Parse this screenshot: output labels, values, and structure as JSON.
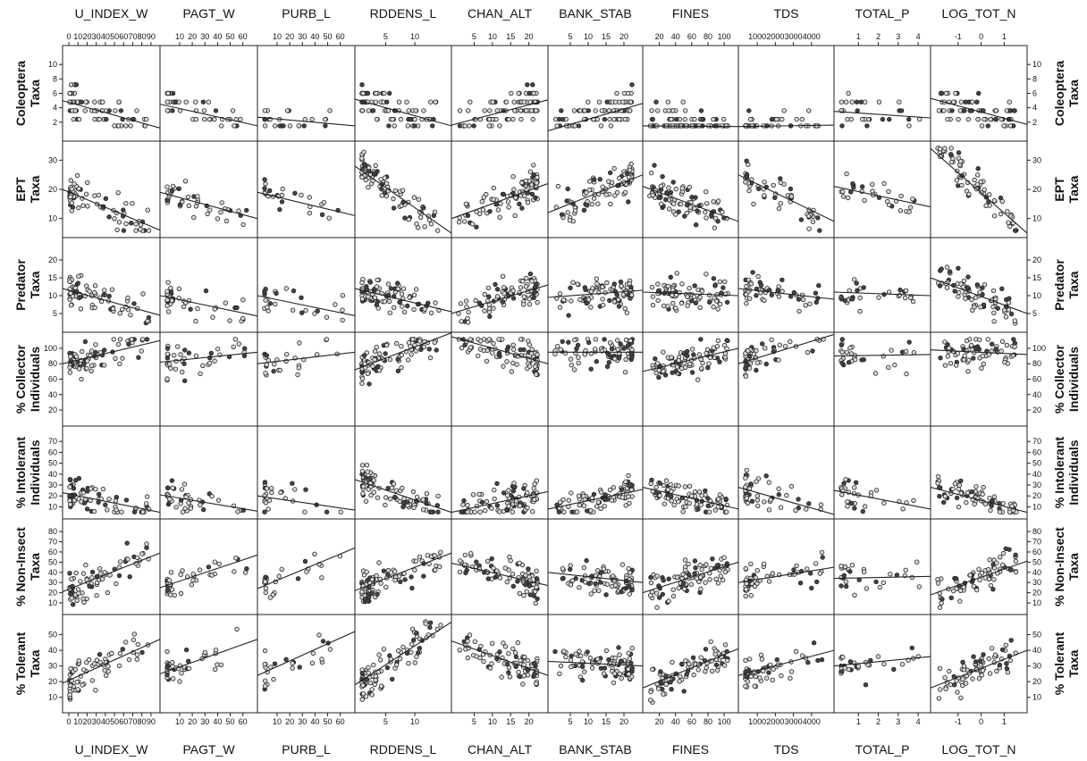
{
  "chart_data": {
    "type": "scatter",
    "title": "",
    "description_kind": "scatterplot matrix with per-panel linear fit lines",
    "grid": false,
    "columns": [
      {
        "name": "U_INDEX_W",
        "ticks": [
          0,
          10,
          20,
          30,
          40,
          50,
          60,
          70,
          80,
          90
        ],
        "tick_labels": [
          "0",
          "10",
          "20",
          "30",
          "40",
          "50",
          "60",
          "70",
          "80",
          "90"
        ],
        "range": [
          -2,
          95
        ],
        "top_label": "U_INDEX_W",
        "bottom_label": "U_INDEX_W"
      },
      {
        "name": "PAGT_W",
        "ticks": [
          10,
          20,
          30,
          40,
          50,
          60
        ],
        "tick_labels": [
          "10",
          "20",
          "30",
          "40",
          "50",
          "60"
        ],
        "range": [
          -2,
          68
        ],
        "top_label": "PAGT_W",
        "bottom_label": "PAGT_W"
      },
      {
        "name": "PURB_L",
        "ticks": [
          10,
          20,
          30,
          40,
          50,
          60
        ],
        "tick_labels": [
          "10",
          "20",
          "30",
          "40",
          "50",
          "60"
        ],
        "range": [
          -2,
          68
        ],
        "top_label": "PURB_L",
        "bottom_label": "PURB_L"
      },
      {
        "name": "RDDENS_L",
        "ticks": [
          5,
          10
        ],
        "tick_labels": [
          "5",
          "10"
        ],
        "range": [
          0.5,
          15.5
        ],
        "top_label": "RDDENS_L",
        "bottom_label": "RDDENS_L"
      },
      {
        "name": "CHAN_ALT",
        "ticks": [
          5,
          10,
          15,
          20
        ],
        "tick_labels": [
          "5",
          "10",
          "15",
          "20"
        ],
        "range": [
          0,
          24
        ],
        "top_label": "CHAN_ALT",
        "bottom_label": "CHAN_ALT"
      },
      {
        "name": "BANK_STAB",
        "ticks": [
          5,
          10,
          15,
          20
        ],
        "tick_labels": [
          "5",
          "10",
          "15",
          "20"
        ],
        "range": [
          0,
          24
        ],
        "top_label": "BANK_STAB",
        "bottom_label": "BANK_STAB"
      },
      {
        "name": "FINES",
        "ticks": [
          20,
          40,
          60,
          80,
          100
        ],
        "tick_labels": [
          "20",
          "40",
          "60",
          "80",
          "100"
        ],
        "range": [
          5,
          112
        ],
        "top_label": "FINES",
        "bottom_label": "FINES"
      },
      {
        "name": "TDS",
        "ticks": [
          1000,
          2000,
          3000,
          4000
        ],
        "tick_labels": [
          "1000",
          "2000",
          "3000",
          "4000"
        ],
        "range": [
          200,
          5000
        ],
        "top_label": "TDS",
        "bottom_label": "TDS"
      },
      {
        "name": "TOTAL_P",
        "ticks": [
          1,
          2,
          3,
          4
        ],
        "tick_labels": [
          "1",
          "2",
          "3",
          "4"
        ],
        "range": [
          0,
          4.4
        ],
        "top_label": "TOTAL_P",
        "bottom_label": "TOTAL_P"
      },
      {
        "name": "LOG_TOT_N",
        "ticks": [
          -1,
          0,
          1
        ],
        "tick_labels": [
          "-1",
          "0",
          "1"
        ],
        "range": [
          -2,
          1.8
        ],
        "top_label": "LOG_TOT_N",
        "bottom_label": "LOG_TOT_N"
      }
    ],
    "rows": [
      {
        "name": "Coleoptera Taxa",
        "label_lines": [
          "Coleoptera",
          "Taxa"
        ],
        "ticks": [
          2,
          4,
          6,
          8,
          10
        ],
        "tick_labels": [
          "2",
          "4",
          "6",
          "8",
          "10"
        ],
        "range": [
          0,
          12
        ]
      },
      {
        "name": "EPT Taxa",
        "label_lines": [
          "EPT",
          "Taxa"
        ],
        "ticks": [
          10,
          20,
          30
        ],
        "tick_labels": [
          "10",
          "20",
          "30"
        ],
        "range": [
          5,
          35
        ]
      },
      {
        "name": "Predator Taxa",
        "label_lines": [
          "Predator",
          "Taxa"
        ],
        "ticks": [
          5,
          10,
          15,
          20
        ],
        "tick_labels": [
          "5",
          "10",
          "15",
          "20"
        ],
        "range": [
          1,
          25
        ]
      },
      {
        "name": "% Collector Individuals",
        "label_lines": [
          "% Collector",
          "Individuals"
        ],
        "ticks": [
          20,
          40,
          60,
          80,
          100
        ],
        "tick_labels": [
          "20",
          "40",
          "60",
          "80",
          "100"
        ],
        "range": [
          5,
          115
        ]
      },
      {
        "name": "% Intolerant Individuals",
        "label_lines": [
          "% Intolerant",
          "Individuals"
        ],
        "ticks": [
          10,
          20,
          30,
          40,
          50,
          60,
          70
        ],
        "tick_labels": [
          "10",
          "20",
          "30",
          "40",
          "50",
          "60",
          "70"
        ],
        "range": [
          3,
          80
        ]
      },
      {
        "name": "% Non-Insect Taxa",
        "label_lines": [
          "% Non-Insect",
          "Taxa"
        ],
        "ticks": [
          10,
          20,
          30,
          40,
          50,
          60,
          70,
          80
        ],
        "tick_labels": [
          "10",
          "20",
          "30",
          "40",
          "50",
          "60",
          "70",
          "80"
        ],
        "range": [
          3,
          88
        ]
      },
      {
        "name": "% Tolerant Taxa",
        "label_lines": [
          "% Tolerant",
          "Taxa"
        ],
        "ticks": [
          10,
          20,
          30,
          40,
          50
        ],
        "tick_labels": [
          "10",
          "20",
          "30",
          "40",
          "50"
        ],
        "range": [
          3,
          60
        ]
      }
    ],
    "fit_lines": [
      [
        [
          5.0,
          1.2
        ],
        [
          4.5,
          1.5
        ],
        [
          2.7,
          1.5
        ],
        [
          5.2,
          1.5
        ],
        [
          1.6,
          5.1
        ],
        [
          0.8,
          4.6
        ],
        [
          1.5,
          1.4
        ],
        [
          1.4,
          1.6
        ],
        [
          3.5,
          2.6
        ],
        [
          5.3,
          1.7
        ]
      ],
      [
        [
          20,
          6
        ],
        [
          19,
          10
        ],
        [
          19,
          11
        ],
        [
          28,
          5
        ],
        [
          10,
          22
        ],
        [
          12,
          25
        ],
        [
          21,
          9
        ],
        [
          25,
          9
        ],
        [
          21,
          14
        ],
        [
          34,
          5
        ]
      ],
      [
        [
          12,
          4.5
        ],
        [
          10,
          4.3
        ],
        [
          10,
          4.4
        ],
        [
          12,
          5.5
        ],
        [
          5,
          13
        ],
        [
          9.5,
          11.5
        ],
        [
          11,
          10
        ],
        [
          12,
          9
        ],
        [
          11,
          10
        ],
        [
          15,
          5
        ]
      ],
      [
        [
          80,
          110
        ],
        [
          82,
          95
        ],
        [
          80,
          95
        ],
        [
          72,
          120
        ],
        [
          115,
          80
        ],
        [
          95,
          95
        ],
        [
          70,
          100
        ],
        [
          80,
          118
        ],
        [
          90,
          92
        ],
        [
          98,
          92
        ]
      ],
      [
        [
          23,
          5
        ],
        [
          21,
          6
        ],
        [
          20,
          7
        ],
        [
          35,
          5
        ],
        [
          5,
          24
        ],
        [
          8,
          26
        ],
        [
          28,
          8
        ],
        [
          28,
          3
        ],
        [
          25,
          8
        ],
        [
          28,
          5
        ]
      ],
      [
        [
          21,
          59
        ],
        [
          25,
          57
        ],
        [
          24,
          64
        ],
        [
          22,
          59
        ],
        [
          49,
          27
        ],
        [
          40,
          30
        ],
        [
          20,
          50
        ],
        [
          30,
          45
        ],
        [
          34,
          36
        ],
        [
          18,
          51
        ]
      ],
      [
        [
          19,
          47
        ],
        [
          25,
          47
        ],
        [
          24,
          52
        ],
        [
          18,
          58
        ],
        [
          46,
          24
        ],
        [
          33,
          30
        ],
        [
          16,
          41
        ],
        [
          24,
          40
        ],
        [
          30,
          36
        ],
        [
          16,
          40
        ]
      ]
    ],
    "point_counts": [
      [
        70,
        40,
        25,
        85,
        85,
        85,
        85,
        50,
        30,
        70
      ],
      [
        70,
        40,
        25,
        85,
        85,
        85,
        85,
        50,
        30,
        70
      ],
      [
        70,
        40,
        25,
        85,
        85,
        85,
        85,
        50,
        30,
        70
      ],
      [
        70,
        40,
        25,
        85,
        85,
        85,
        85,
        50,
        30,
        70
      ],
      [
        70,
        40,
        25,
        85,
        85,
        85,
        85,
        50,
        30,
        70
      ],
      [
        70,
        40,
        25,
        85,
        85,
        85,
        85,
        50,
        30,
        70
      ],
      [
        70,
        40,
        25,
        85,
        85,
        85,
        85,
        50,
        30,
        70
      ]
    ]
  }
}
